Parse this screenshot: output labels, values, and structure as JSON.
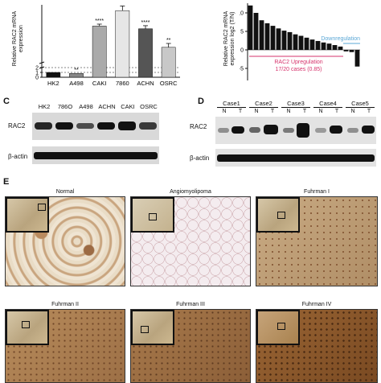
{
  "panelA": {
    "ylabel_line1": "Relative RAC2 mRNA",
    "ylabel_line2": "expression",
    "chart_data": {
      "type": "bar",
      "categories": [
        "HK2",
        "A498",
        "CAKI",
        "7860",
        "ACHN",
        "OSRC"
      ],
      "values": [
        1,
        0.8,
        95,
        135,
        88,
        40
      ],
      "errors": [
        0.1,
        0.1,
        5,
        12,
        8,
        10
      ],
      "significance": [
        "",
        "**",
        "****",
        "",
        "****",
        "**"
      ],
      "colors": [
        "#111111",
        "#888888",
        "#aaaaaa",
        "#e6e6e6",
        "#555555",
        "#c8c8c8"
      ],
      "ytick_labels": [
        "2",
        "1",
        "0"
      ]
    }
  },
  "panelB": {
    "ylabel_line1": "Relative RAC2 mRNA",
    "ylabel_line2": "expression log2 (T/N)",
    "downregulation_label": "Downregulation",
    "upregulation_label": "RAC2 Upregulation",
    "cases_label": "17/20 cases (0.85)",
    "chart_data": {
      "type": "bar",
      "values": [
        12,
        10,
        8,
        7.2,
        6.5,
        5.8,
        5.2,
        4.8,
        4.2,
        3.8,
        3.3,
        2.8,
        2.4,
        2,
        1.7,
        1.3,
        0.9,
        -0.4,
        -0.6,
        -4.5
      ],
      "yticks": [
        10,
        5,
        0,
        -5
      ],
      "ytick_labels": [
        "10",
        "5",
        "0",
        "-5"
      ]
    }
  },
  "panelC": {
    "letter": "C",
    "lanes": [
      "HK2",
      "786O",
      "A498",
      "ACHN",
      "CAKI",
      "OSRC"
    ],
    "row1": "RAC2",
    "row2": "β-actin"
  },
  "panelD": {
    "letter": "D",
    "cases": [
      "Case1",
      "Case2",
      "Case3",
      "Case4",
      "Case5"
    ],
    "nt": [
      "N",
      "T",
      "N",
      "T",
      "N",
      "T",
      "N",
      "T",
      "N",
      "T"
    ],
    "row1": "RAC2",
    "row2": "β-actin"
  },
  "panelE": {
    "letter": "E",
    "images": [
      "Normal",
      "Angiomyolipoma",
      "Fuhrman I",
      "Fuhrman II",
      "Fuhrman III",
      "Fuhrman IV"
    ]
  },
  "colors": {
    "upregulation": "#d6336c",
    "downregulation": "#5aa7d6"
  }
}
